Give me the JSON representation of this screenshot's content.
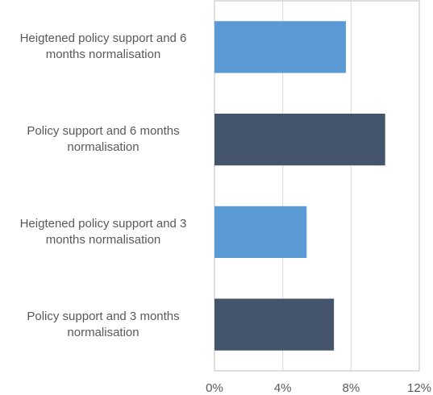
{
  "chart_data": {
    "type": "barh",
    "categories": [
      "Heigtened policy support and 6 months normalisation",
      "Policy support and 6 months normalisation",
      "Heigtened policy support and 3 months normalisation",
      "Policy support and 3 months normalisation"
    ],
    "values": [
      7.7,
      10.0,
      5.4,
      7.0
    ],
    "colors": [
      "#5b9bd5",
      "#44546a",
      "#5b9bd5",
      "#44546a"
    ],
    "xlim": [
      0,
      12
    ],
    "xticks": [
      {
        "value": 0,
        "label": "0%"
      },
      {
        "value": 4,
        "label": "4%"
      },
      {
        "value": 8,
        "label": "8%"
      },
      {
        "value": 12,
        "label": "12%"
      }
    ],
    "grid": true
  }
}
